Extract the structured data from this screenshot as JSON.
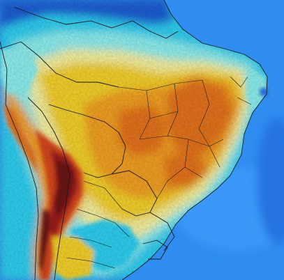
{
  "map": {
    "region": "South America",
    "style": "gridded field heat map",
    "palette": {
      "ocean": "#2f8cf0",
      "ocean_light": "#45a3ff",
      "deep_blue": "#1c5fd6",
      "cyan": "#2fd0f2",
      "light_cyan": "#8ef0ef",
      "pale_yellow": "#f6f2a0",
      "yellow": "#f5d22b",
      "orange": "#f3a023",
      "dark_orange": "#e5731f",
      "red": "#d7471c",
      "dark_red": "#9e1d1a",
      "maroon": "#6c1612",
      "borders": "#1a1a1a"
    }
  }
}
